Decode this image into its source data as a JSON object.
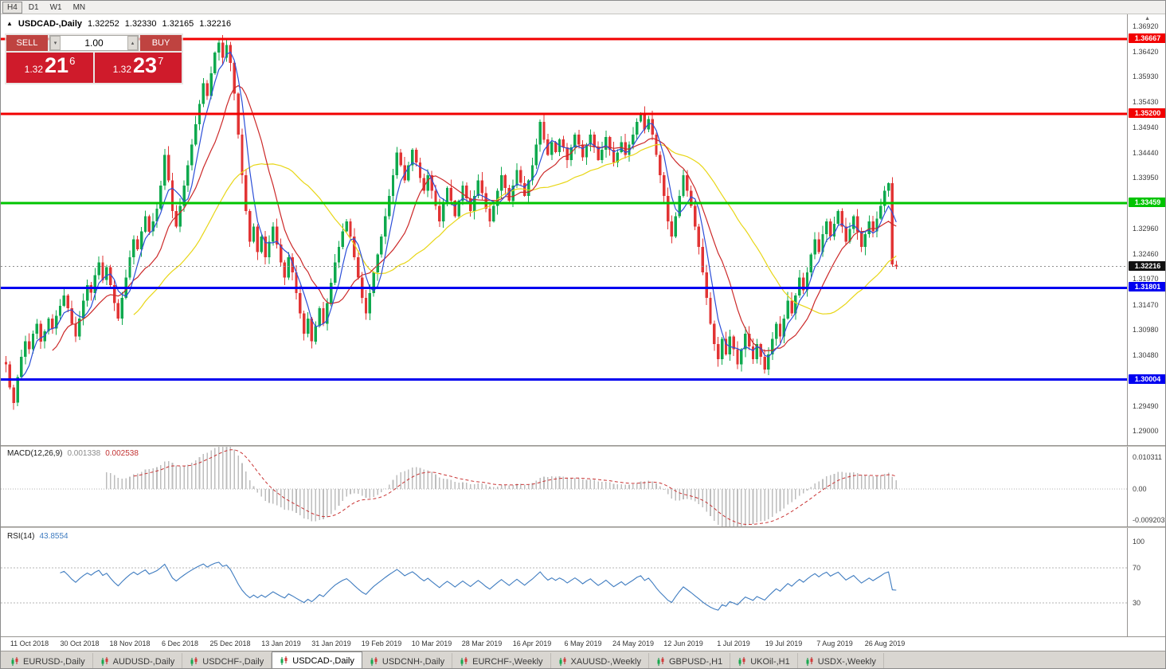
{
  "toolbar": {
    "timeframes": [
      {
        "label": "H4",
        "active": true
      },
      {
        "label": "D1",
        "active": false
      },
      {
        "label": "W1",
        "active": false
      },
      {
        "label": "MN",
        "active": false
      }
    ]
  },
  "icons": {
    "title_arrow": "▲",
    "spin_down": "▾",
    "spin_up": "▴",
    "scroll_up": "▲"
  },
  "chart_header": {
    "symbol": "USDCAD-,Daily",
    "open": "1.32252",
    "high": "1.32330",
    "low": "1.32165",
    "close": "1.32216"
  },
  "trade_panel": {
    "sell_label": "SELL",
    "buy_label": "BUY",
    "volume": "1.00",
    "sell_price": {
      "prefix": "1.32",
      "big": "21",
      "sup": "6"
    },
    "buy_price": {
      "prefix": "1.32",
      "big": "23",
      "sup": "7"
    }
  },
  "chart_data": {
    "type": "candlestick",
    "title": "USDCAD-,Daily",
    "price_top": 1.3715,
    "price_bottom": 1.2872,
    "colors": {
      "up": "#0fa94e",
      "down": "#e23434"
    },
    "closes": [
      1.303,
      1.2985,
      1.2955,
      1.3005,
      1.3045,
      1.3075,
      1.306,
      1.309,
      1.311,
      1.3075,
      1.3095,
      1.312,
      1.31,
      1.3125,
      1.3145,
      1.3165,
      1.314,
      1.311,
      1.3085,
      1.312,
      1.3155,
      1.3185,
      1.317,
      1.3205,
      1.323,
      1.3195,
      1.322,
      1.3185,
      1.315,
      1.312,
      1.316,
      1.32,
      1.324,
      1.3275,
      1.3255,
      1.329,
      1.332,
      1.329,
      1.331,
      1.3335,
      1.338,
      1.344,
      1.339,
      1.333,
      1.33,
      1.334,
      1.338,
      1.342,
      1.346,
      1.35,
      1.354,
      1.358,
      1.3555,
      1.36,
      1.364,
      1.366,
      1.363,
      1.3655,
      1.362,
      1.356,
      1.348,
      1.34,
      1.333,
      1.327,
      1.33,
      1.325,
      1.328,
      1.324,
      1.327,
      1.33,
      1.3265,
      1.323,
      1.32,
      1.324,
      1.321,
      1.317,
      1.313,
      1.309,
      1.312,
      1.3075,
      1.3105,
      1.314,
      1.311,
      1.315,
      1.319,
      1.323,
      1.326,
      1.329,
      1.331,
      1.328,
      1.324,
      1.32,
      1.316,
      1.313,
      1.317,
      1.321,
      1.3245,
      1.328,
      1.332,
      1.336,
      1.34,
      1.3445,
      1.342,
      1.339,
      1.342,
      1.345,
      1.3425,
      1.3395,
      1.337,
      1.34,
      1.337,
      1.334,
      1.331,
      1.3345,
      1.3375,
      1.335,
      1.332,
      1.335,
      1.338,
      1.3355,
      1.333,
      1.336,
      1.339,
      1.3365,
      1.3335,
      1.331,
      1.334,
      1.337,
      1.34,
      1.3375,
      1.335,
      1.338,
      1.341,
      1.3385,
      1.336,
      1.339,
      1.342,
      1.346,
      1.3505,
      1.347,
      1.344,
      1.3465,
      1.3445,
      1.347,
      1.3455,
      1.343,
      1.3455,
      1.348,
      1.346,
      1.3435,
      1.346,
      1.348,
      1.3455,
      1.343,
      1.345,
      1.3475,
      1.345,
      1.3425,
      1.3445,
      1.3465,
      1.344,
      1.346,
      1.348,
      1.3505,
      1.352,
      1.349,
      1.351,
      1.348,
      1.344,
      1.34,
      1.336,
      1.331,
      1.328,
      1.332,
      1.336,
      1.34,
      1.337,
      1.334,
      1.33,
      1.326,
      1.321,
      1.316,
      1.311,
      1.307,
      1.304,
      1.308,
      1.305,
      1.3085,
      1.306,
      1.303,
      1.306,
      1.309,
      1.3065,
      1.304,
      1.307,
      1.3045,
      1.302,
      1.305,
      1.308,
      1.311,
      1.3085,
      1.312,
      1.3155,
      1.313,
      1.3165,
      1.32,
      1.3175,
      1.321,
      1.3245,
      1.3275,
      1.325,
      1.3285,
      1.331,
      1.328,
      1.3305,
      1.333,
      1.33,
      1.327,
      1.3295,
      1.332,
      1.329,
      1.326,
      1.3285,
      1.331,
      1.329,
      1.3315,
      1.334,
      1.337,
      1.3385,
      1.3226,
      1.3222
    ],
    "overrides": {
      "2": {
        "l": 1.2941
      },
      "41": {
        "h": 1.3452
      },
      "55": {
        "h": 1.3666
      },
      "57": {
        "h": 1.3664
      },
      "196": {
        "l": 1.3012
      },
      "228": {
        "h": 1.3386
      },
      "230": {
        "o": 1.32252,
        "h": 1.3233,
        "l": 1.32165,
        "c": 1.32216
      }
    },
    "levels": [
      {
        "price": 1.36667,
        "label": "1.36667",
        "color": "#f20000",
        "width": 3
      },
      {
        "price": 1.352,
        "label": "1.35200",
        "color": "#f20000",
        "width": 3
      },
      {
        "price": 1.33459,
        "label": "1.33459",
        "color": "#00c400",
        "width": 3
      },
      {
        "price": 1.31801,
        "label": "1.31801",
        "color": "#0000f0",
        "width": 3
      },
      {
        "price": 1.30004,
        "label": "1.30004",
        "color": "#0000f0",
        "width": 3
      }
    ],
    "current_price": {
      "value": "1.32216",
      "price": 1.32216,
      "bg": "#111111"
    },
    "axis_ticks": [
      "1.36920",
      "1.36420",
      "1.35930",
      "1.35430",
      "1.34940",
      "1.34440",
      "1.33950",
      "1.32960",
      "1.32460",
      "1.31970",
      "1.31470",
      "1.30980",
      "1.30480",
      "1.29490",
      "1.29000"
    ],
    "moving_averages": [
      {
        "period": 34,
        "color": "#e8d616"
      },
      {
        "period": 13,
        "color": "#cc2929"
      },
      {
        "period": 5,
        "color": "#2c4fd8"
      }
    ],
    "x_labels": [
      {
        "label": "11 Oct 2018",
        "i": 6
      },
      {
        "label": "30 Oct 2018",
        "i": 19
      },
      {
        "label": "18 Nov 2018",
        "i": 32
      },
      {
        "label": "6 Dec 2018",
        "i": 45
      },
      {
        "label": "25 Dec 2018",
        "i": 58
      },
      {
        "label": "13 Jan 2019",
        "i": 71
      },
      {
        "label": "31 Jan 2019",
        "i": 84
      },
      {
        "label": "19 Feb 2019",
        "i": 97
      },
      {
        "label": "10 Mar 2019",
        "i": 110
      },
      {
        "label": "28 Mar 2019",
        "i": 123
      },
      {
        "label": "16 Apr 2019",
        "i": 136
      },
      {
        "label": "6 May 2019",
        "i": 149
      },
      {
        "label": "24 May 2019",
        "i": 162
      },
      {
        "label": "12 Jun 2019",
        "i": 175
      },
      {
        "label": "1 Jul 2019",
        "i": 188
      },
      {
        "label": "19 Jul 2019",
        "i": 201
      },
      {
        "label": "7 Aug 2019",
        "i": 214
      },
      {
        "label": "26 Aug 2019",
        "i": 227
      }
    ]
  },
  "macd": {
    "label": "MACD(12,26,9)",
    "value_main": "0.001338",
    "value_signal": "0.002538",
    "axis_top_label": "0.010311",
    "axis_zero_label": "0.00",
    "axis_bottom_label": "-0.0092031",
    "axis_top_value": 0.0103,
    "axis_bottom_value": -0.0092,
    "colors": {
      "histogram": "#bdbdbd",
      "signal": "#c93434"
    }
  },
  "rsi": {
    "label": "RSI(14)",
    "value": "43.8554",
    "axis": [
      {
        "label": "100",
        "v": 100
      },
      {
        "label": "70",
        "v": 70
      },
      {
        "label": "30",
        "v": 30
      }
    ],
    "guide_levels": [
      70,
      30
    ],
    "color": "#3f7cc0"
  },
  "tabs": [
    {
      "label": "EURUSD-,Daily",
      "active": false
    },
    {
      "label": "AUDUSD-,Daily",
      "active": false
    },
    {
      "label": "USDCHF-,Daily",
      "active": false
    },
    {
      "label": "USDCAD-,Daily",
      "active": true
    },
    {
      "label": "USDCNH-,Daily",
      "active": false
    },
    {
      "label": "EURCHF-,Weekly",
      "active": false
    },
    {
      "label": "XAUUSD-,Weekly",
      "active": false
    },
    {
      "label": "GBPUSD-,H1",
      "active": false
    },
    {
      "label": "UKOil-,H1",
      "active": false
    },
    {
      "label": "USDX-,Weekly",
      "active": false
    }
  ]
}
